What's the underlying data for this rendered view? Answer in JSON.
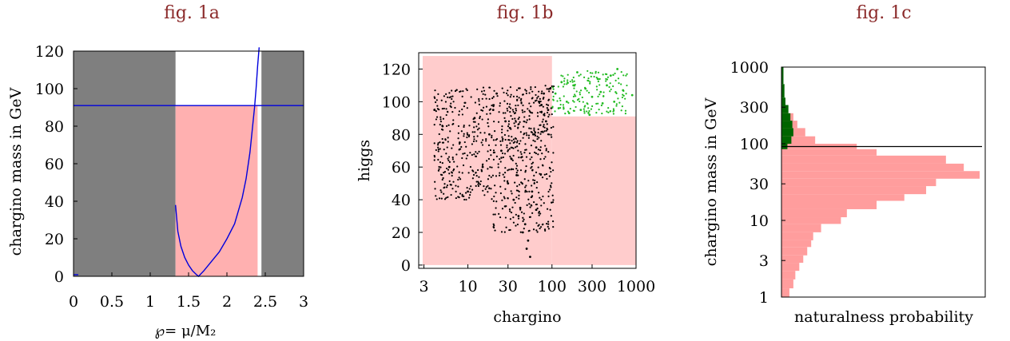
{
  "titles": {
    "a": "fig. 1a",
    "b": "fig. 1b",
    "c": "fig. 1c"
  },
  "colors": {
    "gray": "#7f7f7f",
    "pink_a": "#ffb0b0",
    "pink_b": "#ffcccc",
    "pink_c": "#ff9d9d",
    "line_blue": "#0000dd",
    "green": "#006400",
    "green_pts": "#22bb22"
  },
  "chart_data": [
    {
      "type": "line",
      "id": "fig1a",
      "xlabel": "℘= μ/M₂",
      "ylabel": "chargino mass in GeV",
      "xlim": [
        0,
        3
      ],
      "ylim": [
        0,
        120
      ],
      "xticks": [
        "0",
        "0.5",
        "1",
        "1.5",
        "2",
        "2.5",
        "3"
      ],
      "xtick_values": [
        0,
        0.5,
        1,
        1.5,
        2,
        2.5,
        3
      ],
      "yticks": [
        "0",
        "20",
        "40",
        "60",
        "80",
        "100",
        "120"
      ],
      "ytick_values": [
        0,
        20,
        40,
        60,
        80,
        100,
        120
      ],
      "excluded_bands": [
        [
          0,
          1.33
        ],
        [
          2.45,
          3
        ]
      ],
      "allowed_band": {
        "x": [
          1.33,
          2.4
        ],
        "y": [
          0,
          91
        ]
      },
      "hline_y": 91,
      "curve": {
        "x": [
          1.33,
          1.36,
          1.4,
          1.45,
          1.5,
          1.55,
          1.6,
          1.63,
          1.7,
          1.8,
          1.9,
          2.0,
          2.1,
          2.2,
          2.25,
          2.3,
          2.33,
          2.36,
          2.38,
          2.4,
          2.42
        ],
        "y": [
          38,
          24,
          16,
          10,
          6,
          3,
          1,
          0,
          3,
          8,
          13,
          20,
          28,
          42,
          52,
          66,
          78,
          90,
          100,
          112,
          122
        ]
      }
    },
    {
      "type": "scatter",
      "id": "fig1b",
      "xlabel": "chargino",
      "ylabel": "higgs",
      "xscale": "log",
      "xlim": [
        2.6,
        1000
      ],
      "ylim": [
        -2,
        130
      ],
      "xticks": [
        "3",
        "10",
        "30",
        "100",
        "300",
        "1000"
      ],
      "xtick_values": [
        3,
        10,
        30,
        100,
        300,
        1000
      ],
      "yticks": [
        "0",
        "20",
        "40",
        "60",
        "80",
        "100",
        "120"
      ],
      "ytick_values": [
        0,
        20,
        40,
        60,
        80,
        100,
        120
      ],
      "excluded_regions": [
        {
          "x": [
            2.6,
            100
          ],
          "y": [
            0,
            128
          ]
        },
        {
          "x": [
            100,
            1000
          ],
          "y": [
            0,
            91
          ]
        }
      ],
      "series": [
        {
          "color": "black",
          "points": [
            [
              5,
              85
            ],
            [
              8,
              75
            ],
            [
              12,
              90
            ],
            [
              15,
              60
            ],
            [
              20,
              95
            ],
            [
              25,
              70
            ],
            [
              30,
              50
            ],
            [
              35,
              40
            ],
            [
              40,
              30
            ],
            [
              45,
              20
            ],
            [
              50,
              10
            ],
            [
              55,
              5
            ],
            [
              60,
              80
            ],
            [
              70,
              100
            ],
            [
              80,
              105
            ],
            [
              90,
              95
            ],
            [
              4,
              95
            ],
            [
              6,
              60
            ],
            [
              10,
              45
            ],
            [
              18,
              80
            ],
            [
              22,
              105
            ],
            [
              28,
              88
            ],
            [
              33,
              65
            ],
            [
              38,
              55
            ],
            [
              42,
              35
            ],
            [
              48,
              25
            ],
            [
              52,
              15
            ],
            [
              58,
              45
            ],
            [
              65,
              72
            ],
            [
              75,
              98
            ],
            [
              85,
              88
            ],
            [
              95,
              108
            ]
          ]
        },
        {
          "color": "green",
          "points": [
            [
              110,
              105
            ],
            [
              130,
              112
            ],
            [
              150,
              100
            ],
            [
              180,
              110
            ],
            [
              200,
              118
            ],
            [
              250,
              108
            ],
            [
              300,
              103
            ],
            [
              350,
              114
            ],
            [
              400,
              99
            ],
            [
              450,
              110
            ],
            [
              500,
              116
            ],
            [
              600,
              120
            ],
            [
              700,
              107
            ],
            [
              900,
              104
            ],
            [
              120,
              96
            ],
            [
              160,
              93
            ],
            [
              220,
              95
            ],
            [
              280,
              92
            ],
            [
              380,
              106
            ],
            [
              550,
              100
            ]
          ]
        }
      ]
    },
    {
      "type": "bar",
      "id": "fig1c",
      "orientation": "horizontal",
      "xlabel": "naturalness probability",
      "ylabel": "chargino mass in GeV",
      "yscale": "log",
      "ylim": [
        1,
        1000
      ],
      "yticks": [
        "1",
        "3",
        "10",
        "30",
        "100",
        "300",
        "1000"
      ],
      "ytick_values": [
        1,
        3,
        10,
        30,
        100,
        300,
        1000
      ],
      "hline_y": 92,
      "series": [
        {
          "name": "",
          "color": "pink",
          "bins": [
            [
              1,
              1.3,
              0.04
            ],
            [
              1.3,
              1.7,
              0.06
            ],
            [
              1.7,
              2.2,
              0.07
            ],
            [
              2.2,
              2.8,
              0.09
            ],
            [
              2.8,
              3.5,
              0.11
            ],
            [
              3.5,
              4.5,
              0.13
            ],
            [
              4.5,
              5.5,
              0.15
            ],
            [
              5.5,
              7,
              0.16
            ],
            [
              7,
              9,
              0.2
            ],
            [
              9,
              11,
              0.3
            ],
            [
              11,
              14,
              0.33
            ],
            [
              14,
              18,
              0.48
            ],
            [
              18,
              22,
              0.62
            ],
            [
              22,
              28,
              0.73
            ],
            [
              28,
              35,
              0.78
            ],
            [
              35,
              44,
              1.0
            ],
            [
              44,
              55,
              0.92
            ],
            [
              55,
              70,
              0.83
            ],
            [
              70,
              85,
              0.48
            ],
            [
              85,
              100,
              0.38
            ],
            [
              100,
              125,
              0.17
            ],
            [
              125,
              160,
              0.12
            ],
            [
              160,
              200,
              0.08
            ],
            [
              200,
              250,
              0.06
            ],
            [
              250,
              320,
              0.03
            ]
          ]
        },
        {
          "name": "",
          "color": "green",
          "bins": [
            [
              85,
              100,
              0.03
            ],
            [
              100,
              125,
              0.05
            ],
            [
              125,
              160,
              0.06
            ],
            [
              160,
              200,
              0.055
            ],
            [
              200,
              250,
              0.045
            ],
            [
              250,
              320,
              0.035
            ],
            [
              320,
              400,
              0.02
            ],
            [
              400,
              600,
              0.015
            ],
            [
              600,
              1000,
              0.01
            ]
          ]
        }
      ]
    }
  ]
}
